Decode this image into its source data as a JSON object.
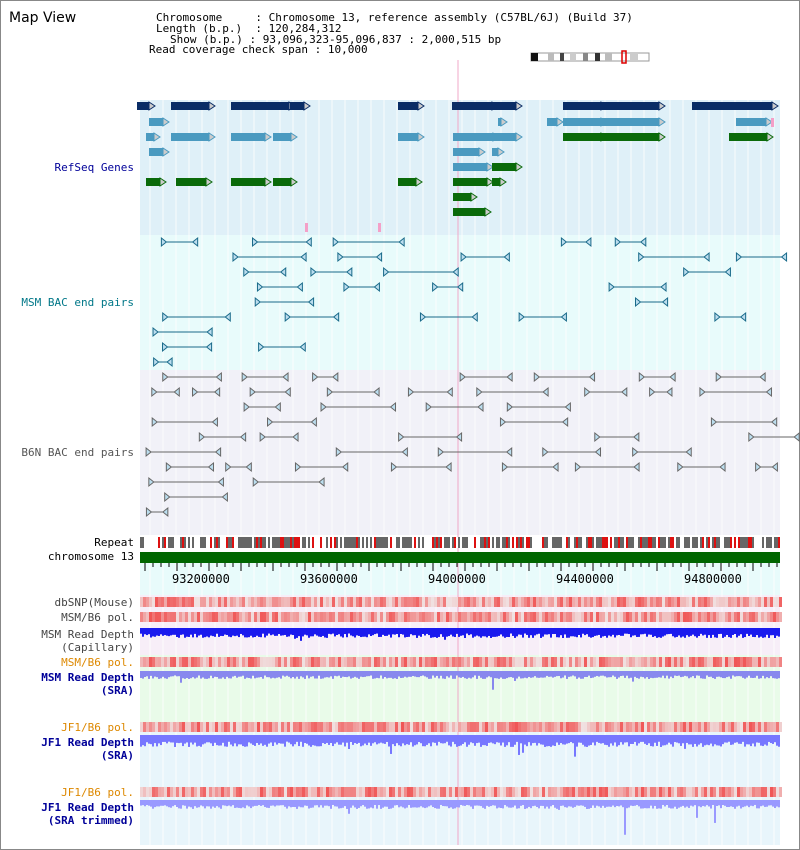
{
  "title": "Map View",
  "info": {
    "chromosome_key": "Chromosome",
    "chromosome_val": "Chromosome 13, reference assembly (C57BL/6J) (Build 37)",
    "length_key": "Length (b.p.)",
    "length_val": "120,284,312",
    "show_key": "Show (b.p.)",
    "show_val": "93,096,323-95,096,837 : 2,000,515 bp",
    "coverage_key": "Read coverage check span",
    "coverage_val": "10,000"
  },
  "tracks": {
    "refseq": "RefSeq Genes",
    "msm_bac": "MSM BAC end pairs",
    "b6n_bac": "B6N BAC end pairs",
    "repeat": "Repeat",
    "chromosome": "chromosome 13",
    "dbsnp": "dbSNP(Mouse)",
    "msm_b6_pol_1": "MSM/B6 pol.",
    "msm_read_depth_cap_1": "MSM Read Depth",
    "msm_read_depth_cap_2": "(Capillary)",
    "msm_b6_pol_2": "MSM/B6 pol.",
    "msm_read_depth_sra_1": "MSM Read Depth",
    "msm_read_depth_sra_2": "(SRA)",
    "jf1_b6_pol_1": "JF1/B6 pol.",
    "jf1_read_depth_sra_1": "JF1 Read Depth",
    "jf1_read_depth_sra_2": "(SRA)",
    "jf1_b6_pol_2": "JF1/B6 pol.",
    "jf1_read_depth_trim_1": "JF1 Read Depth",
    "jf1_read_depth_trim_2": "(SRA trimmed)"
  },
  "axis_ticks": [
    "93200000",
    "93600000",
    "94000000",
    "94400000",
    "94800000"
  ],
  "colors": {
    "refseq_bg": "#dff0f8",
    "gene_dark": "#0a2d66",
    "gene_mid": "#4a9ac0",
    "gene_green": "#0a6a0a",
    "pink": "#f4a0c8",
    "bac_teal": "#1a6a8a",
    "bac_gray": "#666666",
    "repeat_red": "#dd1111",
    "chromosome_green": "#006600",
    "depth_blue": "#1a1aee",
    "depth_lightblue": "#7777ff",
    "label_blue": "#000099",
    "label_orange": "#dd8800",
    "label_teal": "#007788"
  }
}
